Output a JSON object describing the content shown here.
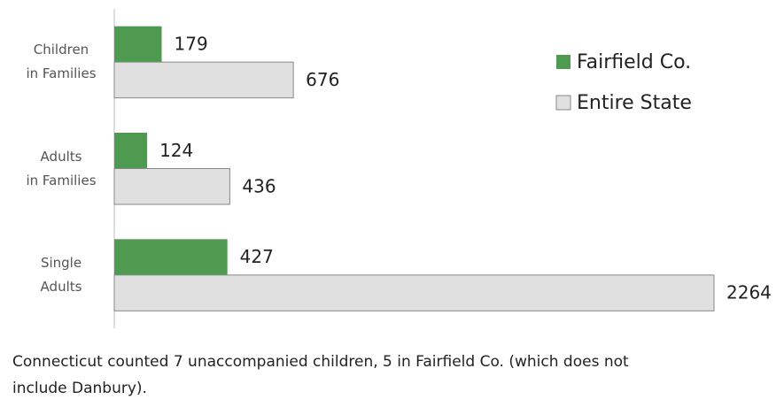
{
  "chart_data": {
    "type": "bar",
    "orientation": "horizontal",
    "categories": [
      "Children\nin Families",
      "Adults\nin Families",
      "Single\nAdults"
    ],
    "series": [
      {
        "name": "Fairfield Co.",
        "color": "#4e9a50",
        "values": [
          179,
          124,
          427
        ]
      },
      {
        "name": "Entire State",
        "color": "#e0e0e0",
        "values": [
          676,
          436,
          2264
        ]
      }
    ],
    "xlim": [
      0,
      2264
    ],
    "legend": "right",
    "annotation": "Connecticut counted 7 unaccompanied children, 5 in Fairfield Co. (which does not\ninclude Danbury)."
  }
}
